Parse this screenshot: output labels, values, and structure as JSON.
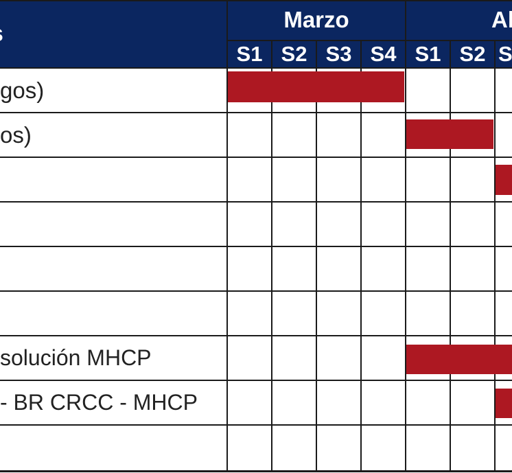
{
  "header": {
    "task_column": "s",
    "months": [
      {
        "label": "Marzo",
        "weeks": [
          "S1",
          "S2",
          "S3",
          "S4"
        ]
      },
      {
        "label": "Al",
        "weeks": [
          "S1",
          "S2",
          "S"
        ]
      }
    ]
  },
  "tasks": [
    "gos)",
    "os)",
    "",
    "",
    "",
    "",
    "solución MHCP",
    "- BR CRCC - MHCP",
    ""
  ],
  "colors": {
    "header_bg": "#0b2660",
    "bar": "#ad1822"
  }
}
